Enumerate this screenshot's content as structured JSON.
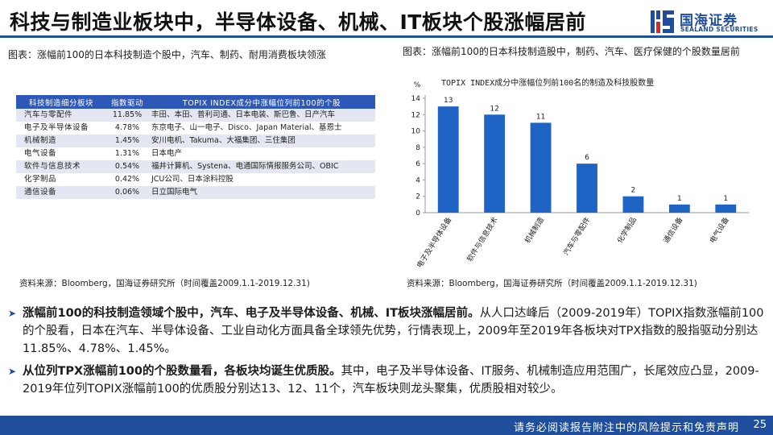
{
  "header": {
    "title": "科技与制造业板块中，半导体设备、机械、IT板块个股涨幅居前",
    "logo_cn": "国海证券",
    "logo_en": "SEALAND SECURITIES",
    "accent": "#1f4e9c"
  },
  "left": {
    "caption": "图表：涨幅前100的日本科技制造个股中，汽车、制药、耐用消费板块领涨",
    "table": {
      "columns": [
        "科技制造细分板块",
        "指数驱动",
        "TOPIX INDEX成分中涨幅位列前100的个股"
      ],
      "rows": [
        [
          "汽车与零配件",
          "11.85%",
          "丰田、本田、普利司通、日本电装、斯巴鲁、日产汽车"
        ],
        [
          "电子及半导体设备",
          "4.78%",
          "东京电子、山一电子、Disco、Japan Material、基恩士"
        ],
        [
          "机械制造",
          "1.45%",
          "安川电机、Takuma、大福集团、三住集团"
        ],
        [
          "电气设备",
          "1.31%",
          "日本电产"
        ],
        [
          "软件与信息技术",
          "0.54%",
          "福井计算机、Systena、电通国际情报服务公司、OBIC"
        ],
        [
          "化学制品",
          "0.42%",
          "JCU公司、日本涂料控股"
        ],
        [
          "通信设备",
          "0.06%",
          "日立国际电气"
        ]
      ]
    },
    "source": "资料来源：Bloomberg，国海证券研究所（时间覆盖2009.1.1-2019.12.31)"
  },
  "right": {
    "caption": "图表：涨幅前100的日本科技制造股中，制药、汽车、医疗保健的个股数量居前",
    "source": "资料来源：Bloomberg，国海证券研究所（时间覆盖2009.1.1-2019.12.31)"
  },
  "chart_data": {
    "type": "bar",
    "title": "TOPIX INDEX成分中涨幅位列前100名的制造及科技股数量",
    "ylabel": "%",
    "categories": [
      "电子及半导体设备",
      "软件与信息技术",
      "机械制造",
      "汽车与零配件",
      "化学制品",
      "通信设备",
      "电气设备"
    ],
    "values": [
      13,
      12,
      11,
      6,
      2,
      1,
      1
    ],
    "yticks": [
      0,
      2,
      4,
      6,
      8,
      10,
      12,
      14
    ],
    "ylim": [
      0,
      14
    ],
    "grid": false,
    "bar_color": "#1f63c5"
  },
  "bullets": [
    {
      "bold": "涨幅前100的科技制造领域个股中，汽车、电子及半导体设备、机械、IT板块涨幅居前。",
      "text": "从人口达峰后（2009-2019年）TOPIX指数涨幅前100的个股看，日本在汽车、半导体设备、工业自动化方面具备全球领先优势，行情表现上，2009年至2019年各板块对TPX指数的股指驱动分别达11.85%、4.78%、1.45%。"
    },
    {
      "bold": "从位列TPX涨幅前100的个股数量看，各板块均诞生优质股。",
      "text": "其中，电子及半导体设备、IT服务、机械制造应用范围广，长尾效应凸显，2009-2019年位列TOPIX涨幅前100的优质股分别达13、12、11个，汽车板块则龙头聚集，优质股相对较少。"
    }
  ],
  "footer": {
    "text": "请务必阅读报告附注中的风险提示和免责声明",
    "page": "25"
  }
}
